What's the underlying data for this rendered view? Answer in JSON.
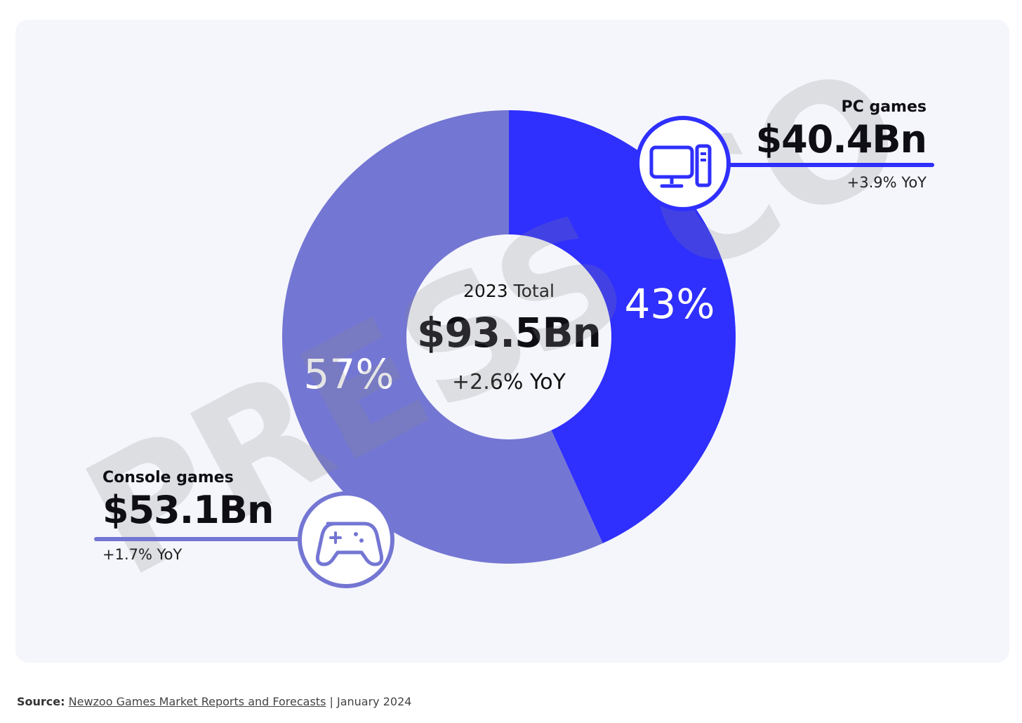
{
  "chart_data": {
    "type": "pie",
    "variant": "donut",
    "title": "2023 Total",
    "total_value": "$93.5Bn",
    "total_yoy": "+2.6% YoY",
    "segments": [
      {
        "name": "PC games",
        "value": 40.4,
        "value_label": "$40.4Bn",
        "percent": 43,
        "percent_label": "43%",
        "yoy": "+3.9% YoY",
        "color": "#2f2ffe",
        "icon": "desktop-computer-icon"
      },
      {
        "name": "Console games",
        "value": 53.1,
        "value_label": "$53.1Bn",
        "percent": 57,
        "percent_label": "57%",
        "yoy": "+1.7% YoY",
        "color": "#7476d3",
        "icon": "gamepad-icon"
      }
    ]
  },
  "watermark": "PRESS CO",
  "source": {
    "label": "Source:",
    "link_text": "Newzoo Games Market Reports and Forecasts",
    "date": "| January 2024"
  }
}
